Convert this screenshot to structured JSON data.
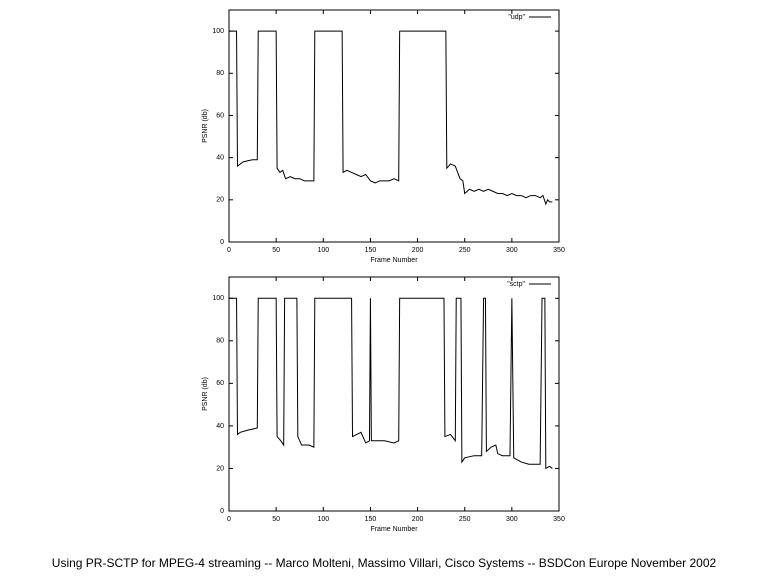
{
  "chart_data": [
    {
      "type": "line",
      "xlabel": "Frame Number",
      "ylabel": "PSNR (db)",
      "x": [
        0,
        8,
        9,
        12,
        15,
        20,
        25,
        30,
        31,
        50,
        51,
        54,
        57,
        60,
        65,
        70,
        75,
        80,
        85,
        90,
        91,
        120,
        121,
        125,
        130,
        135,
        140,
        145,
        150,
        155,
        160,
        165,
        170,
        175,
        180,
        181,
        230,
        231,
        235,
        240,
        245,
        248,
        250,
        255,
        260,
        265,
        270,
        275,
        280,
        285,
        290,
        295,
        300,
        305,
        310,
        315,
        320,
        325,
        330,
        333,
        336,
        338,
        340,
        343
      ],
      "series": [
        {
          "name": "\"udp\"",
          "color": "#000000",
          "values": [
            100,
            100,
            36,
            37,
            38,
            38.5,
            39,
            39,
            100,
            100,
            35,
            33,
            34,
            30,
            31,
            30,
            30,
            29,
            29,
            29,
            100,
            100,
            33,
            34,
            33,
            32,
            31,
            32,
            29,
            28,
            29,
            29,
            29,
            30,
            29,
            100,
            100,
            35,
            37,
            36,
            30,
            29,
            23,
            25,
            24,
            25,
            24,
            25,
            24,
            23,
            23,
            22,
            23,
            22,
            22,
            21,
            22,
            22,
            21,
            22,
            18,
            20,
            19,
            19
          ]
        }
      ],
      "xlim": [
        0,
        350
      ],
      "ylim": [
        0,
        110
      ],
      "xticks": [
        0,
        50,
        100,
        150,
        200,
        250,
        300,
        350
      ],
      "yticks": [
        0,
        20,
        40,
        60,
        80,
        100
      ],
      "legend": "upper right"
    },
    {
      "type": "line",
      "xlabel": "Frame Number",
      "ylabel": "PSNR (db)",
      "x": [
        0,
        8,
        9,
        12,
        20,
        30,
        31,
        50,
        51,
        55,
        58,
        59,
        72,
        73,
        77,
        85,
        90,
        91,
        130,
        131,
        140,
        145,
        149,
        150,
        151,
        155,
        165,
        175,
        180,
        181,
        228,
        229,
        235,
        240,
        241,
        246,
        247,
        250,
        260,
        268,
        270,
        272,
        273,
        278,
        283,
        285,
        290,
        298,
        300,
        302,
        306,
        310,
        318,
        325,
        330,
        332,
        335,
        336,
        340,
        343
      ],
      "series": [
        {
          "name": "\"sctp\"",
          "color": "#000000",
          "values": [
            100,
            100,
            36,
            37,
            38,
            39,
            100,
            100,
            35,
            33,
            31,
            100,
            100,
            35,
            31,
            31,
            30,
            100,
            100,
            35,
            37,
            32,
            33,
            100,
            33,
            33,
            33,
            32,
            33,
            100,
            100,
            35,
            36,
            33,
            100,
            100,
            23,
            25,
            26,
            26,
            100,
            100,
            28,
            30,
            31,
            27,
            26,
            26,
            100,
            25,
            24,
            23,
            22,
            22,
            22,
            100,
            100,
            20,
            21,
            20
          ]
        }
      ],
      "xlim": [
        0,
        350
      ],
      "ylim": [
        0,
        110
      ],
      "xticks": [
        0,
        50,
        100,
        150,
        200,
        250,
        300,
        350
      ],
      "yticks": [
        0,
        20,
        40,
        60,
        80,
        100
      ],
      "legend": "upper right"
    }
  ],
  "footer": "Using PR-SCTP for MPEG-4 streaming -- Marco Molteni, Massimo Villari, Cisco Systems -- BSDCon Europe November 2002"
}
